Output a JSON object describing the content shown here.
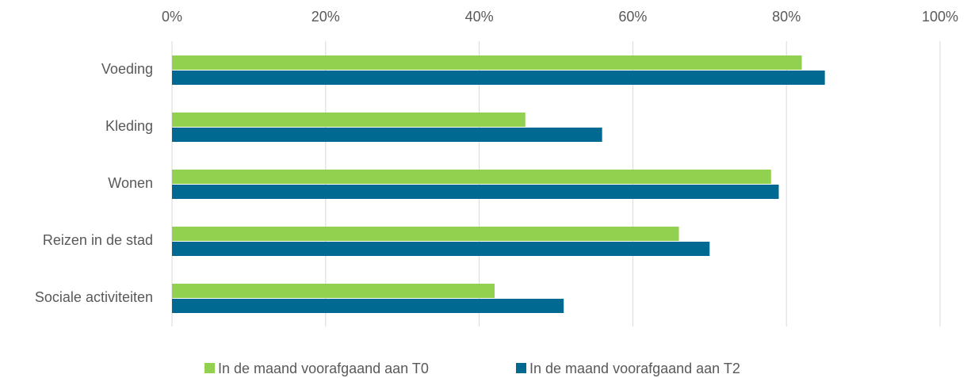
{
  "chart_data": {
    "type": "barh",
    "categories": [
      "Voeding",
      "Kleding",
      "Wonen",
      "Reizen in de stad",
      "Sociale activiteiten"
    ],
    "series": [
      {
        "name": "In de maand voorafgaand aan T0",
        "color": "#92d050",
        "values": [
          82,
          46,
          78,
          66,
          42
        ]
      },
      {
        "name": "In de maand voorafgaand aan T2",
        "color": "#006991",
        "values": [
          85,
          56,
          79,
          70,
          51
        ]
      }
    ],
    "xlim": [
      0,
      100
    ],
    "xticks": [
      {
        "value": 0,
        "label": "0%"
      },
      {
        "value": 20,
        "label": "20%"
      },
      {
        "value": 40,
        "label": "40%"
      },
      {
        "value": 60,
        "label": "60%"
      },
      {
        "value": 80,
        "label": "80%"
      },
      {
        "value": 100,
        "label": "100%"
      }
    ],
    "grid": true,
    "legend": "bottom"
  }
}
